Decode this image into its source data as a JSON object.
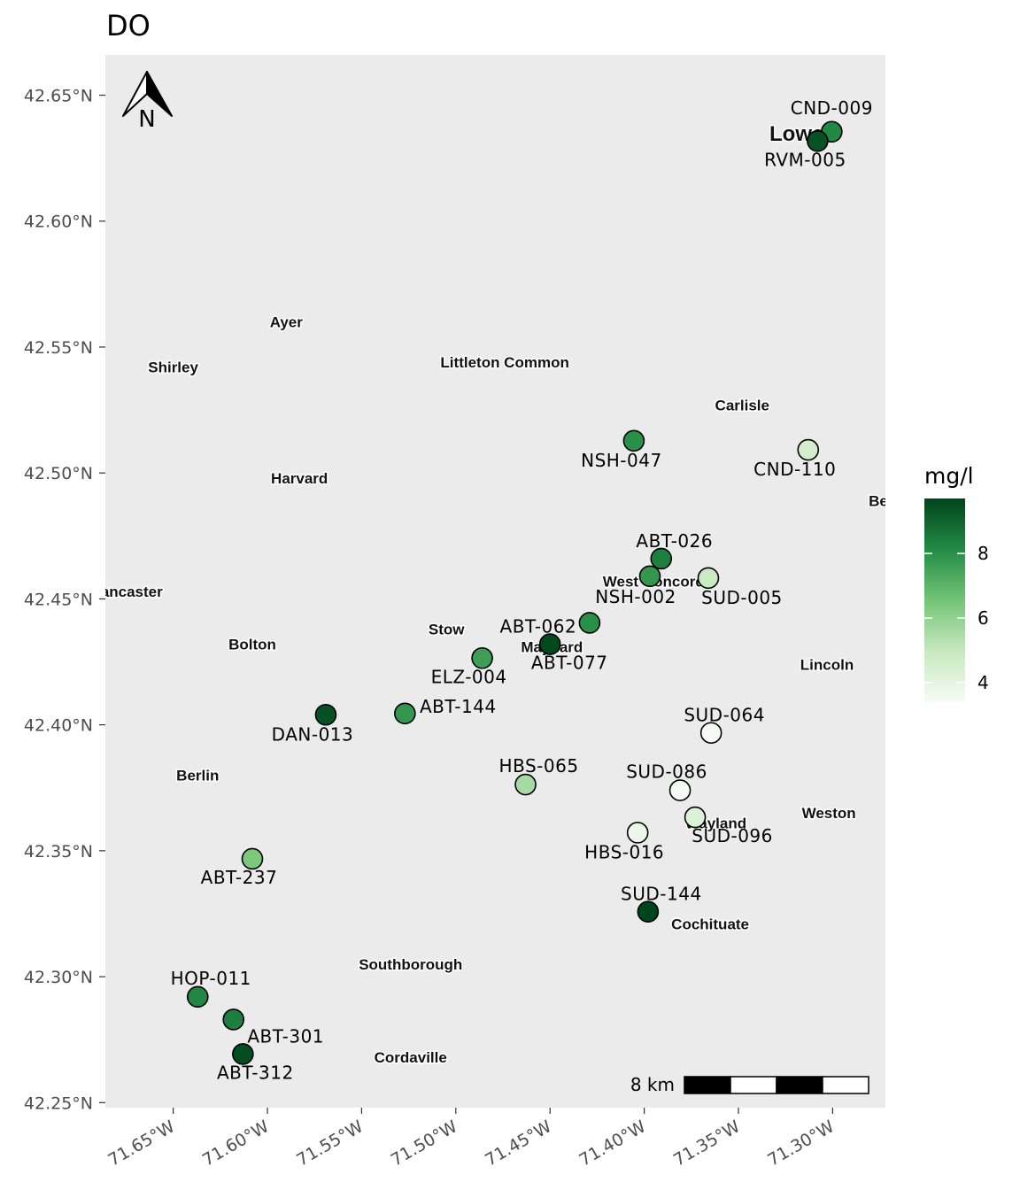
{
  "title": "DO",
  "north_arrow": {
    "label": "N",
    "icon": "north-arrow-icon"
  },
  "scale_bar": {
    "label": "8 km"
  },
  "legend": {
    "title": "mg/l",
    "ticks": [
      4,
      6,
      8
    ],
    "range": [
      3.4,
      9.7
    ],
    "colors": [
      "#f7fcf5",
      "#c7e9c0",
      "#74c476",
      "#238b45",
      "#00441b"
    ]
  },
  "axes": {
    "lat_ticks": [
      42.25,
      42.3,
      42.35,
      42.4,
      42.45,
      42.5,
      42.55,
      42.6,
      42.65
    ],
    "lat_labels": [
      "42.25°N",
      "42.30°N",
      "42.35°N",
      "42.40°N",
      "42.45°N",
      "42.50°N",
      "42.55°N",
      "42.60°N",
      "42.65°N"
    ],
    "lon_ticks": [
      -71.65,
      -71.6,
      -71.55,
      -71.5,
      -71.45,
      -71.4,
      -71.35,
      -71.3
    ],
    "lon_labels": [
      "71.65°W",
      "71.60°W",
      "71.55°W",
      "71.50°W",
      "71.45°W",
      "71.40°W",
      "71.35°W",
      "71.30°W"
    ],
    "lon_range": [
      -71.686,
      -71.272
    ],
    "lat_range": [
      42.248,
      42.666
    ]
  },
  "towns": [
    {
      "name": "Ayer",
      "lon": -71.59,
      "lat": 42.56
    },
    {
      "name": "Shirley",
      "lon": -71.65,
      "lat": 42.542
    },
    {
      "name": "Littleton Common",
      "lon": -71.474,
      "lat": 42.544
    },
    {
      "name": "Carlisle",
      "lon": -71.348,
      "lat": 42.527
    },
    {
      "name": "Harvard",
      "lon": -71.583,
      "lat": 42.498
    },
    {
      "name": "Bedf",
      "lon": -71.272,
      "lat": 42.489
    },
    {
      "name": "ancaster",
      "lon": -71.672,
      "lat": 42.453
    },
    {
      "name": "West Concord",
      "lon": -71.395,
      "lat": 42.457
    },
    {
      "name": "Stow",
      "lon": -71.505,
      "lat": 42.438
    },
    {
      "name": "Maynard",
      "lon": -71.449,
      "lat": 42.431
    },
    {
      "name": "Bolton",
      "lon": -71.608,
      "lat": 42.432
    },
    {
      "name": "Lincoln",
      "lon": -71.303,
      "lat": 42.424
    },
    {
      "name": "Berlin",
      "lon": -71.637,
      "lat": 42.38
    },
    {
      "name": "Wayland",
      "lon": -71.362,
      "lat": 42.361
    },
    {
      "name": "Weston",
      "lon": -71.302,
      "lat": 42.365
    },
    {
      "name": "Cochituate",
      "lon": -71.365,
      "lat": 42.321
    },
    {
      "name": "Southborough",
      "lon": -71.524,
      "lat": 42.305
    },
    {
      "name": "Cordaville",
      "lon": -71.524,
      "lat": 42.268
    },
    {
      "name": "Lowell",
      "lon": -71.316,
      "lat": 42.634
    }
  ],
  "sites": [
    {
      "id": "CND-009",
      "lon": -71.3005,
      "lat": 42.6355,
      "value": 8.2,
      "label_dx": 0,
      "label_dy": -20
    },
    {
      "id": "RVM-005",
      "lon": -71.308,
      "lat": 42.6318,
      "value": 9.4,
      "label_dx": -14,
      "label_dy": 28
    },
    {
      "id": "NSH-047",
      "lon": -71.4055,
      "lat": 42.5128,
      "value": 8.0,
      "label_dx": -14,
      "label_dy": 29
    },
    {
      "id": "CND-110",
      "lon": -71.313,
      "lat": 42.5092,
      "value": 4.6,
      "label_dx": -15,
      "label_dy": 29
    },
    {
      "id": "ABT-026",
      "lon": -71.391,
      "lat": 42.466,
      "value": 8.4,
      "label_dx": 15,
      "label_dy": -13
    },
    {
      "id": "NSH-002",
      "lon": -71.397,
      "lat": 42.459,
      "value": 7.8,
      "label_dx": -16,
      "label_dy": 30
    },
    {
      "id": "SUD-005",
      "lon": -71.366,
      "lat": 42.4583,
      "value": 4.9,
      "label_dx": 38,
      "label_dy": 29
    },
    {
      "id": "ABT-062",
      "lon": -71.429,
      "lat": 42.4405,
      "value": 8.0,
      "label_dx": -58,
      "label_dy": 11
    },
    {
      "id": "ABT-077",
      "lon": -71.45,
      "lat": 42.432,
      "value": 9.6,
      "label_dx": 22,
      "label_dy": 28
    },
    {
      "id": "ELZ-004",
      "lon": -71.486,
      "lat": 42.4265,
      "value": 7.6,
      "label_dx": -15,
      "label_dy": 28
    },
    {
      "id": "ABT-144",
      "lon": -71.527,
      "lat": 42.4045,
      "value": 7.8,
      "label_dx": 60,
      "label_dy": -1
    },
    {
      "id": "DAN-013",
      "lon": -71.569,
      "lat": 42.404,
      "value": 9.4,
      "label_dx": -15,
      "label_dy": 29
    },
    {
      "id": "SUD-064",
      "lon": -71.3645,
      "lat": 42.3968,
      "value": 3.5,
      "label_dx": 15,
      "label_dy": -13
    },
    {
      "id": "HBS-065",
      "lon": -71.463,
      "lat": 42.3763,
      "value": 5.6,
      "label_dx": 15,
      "label_dy": -14
    },
    {
      "id": "SUD-086",
      "lon": -71.381,
      "lat": 42.374,
      "value": 3.5,
      "label_dx": -15,
      "label_dy": -14
    },
    {
      "id": "SUD-096",
      "lon": -71.373,
      "lat": 42.3633,
      "value": 4.3,
      "label_dx": 42,
      "label_dy": 28
    },
    {
      "id": "HBS-016",
      "lon": -71.4035,
      "lat": 42.3572,
      "value": 3.8,
      "label_dx": -15,
      "label_dy": 29
    },
    {
      "id": "ABT-237",
      "lon": -71.608,
      "lat": 42.3468,
      "value": 6.4,
      "label_dx": -15,
      "label_dy": 28
    },
    {
      "id": "SUD-144",
      "lon": -71.398,
      "lat": 42.3258,
      "value": 9.7,
      "label_dx": 15,
      "label_dy": -13
    },
    {
      "id": "HOP-011",
      "lon": -71.637,
      "lat": 42.292,
      "value": 8.2,
      "label_dx": 15,
      "label_dy": -14
    },
    {
      "id": "ABT-301",
      "lon": -71.618,
      "lat": 42.283,
      "value": 8.4,
      "label_dx": 59,
      "label_dy": 26
    },
    {
      "id": "ABT-312",
      "lon": -71.613,
      "lat": 42.2693,
      "value": 9.5,
      "label_dx": 14,
      "label_dy": 28
    }
  ]
}
